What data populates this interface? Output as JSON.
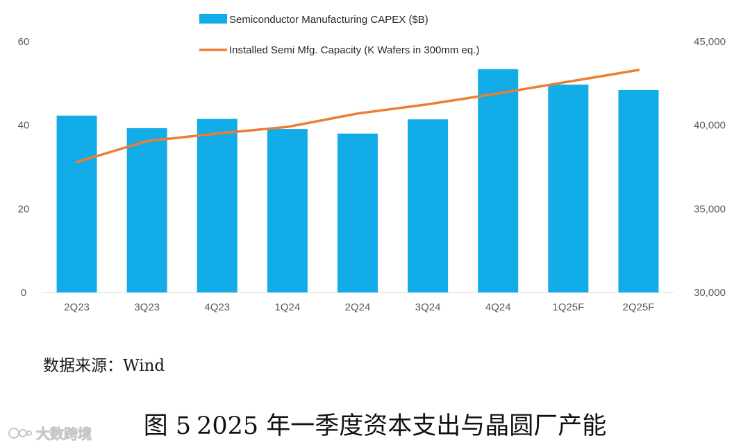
{
  "chart_data": {
    "type": "bar+line",
    "categories": [
      "2Q23",
      "3Q23",
      "4Q23",
      "1Q24",
      "2Q24",
      "3Q24",
      "4Q24",
      "1Q25F",
      "2Q25F"
    ],
    "series": [
      {
        "name": "Semiconductor Manufacturing CAPEX ($B)",
        "kind": "bar",
        "axis": "left",
        "color": "#12ACE8",
        "values": [
          42.3,
          39.3,
          41.5,
          39.1,
          38.0,
          41.4,
          53.4,
          49.7,
          48.4
        ]
      },
      {
        "name": "Installed Semi Mfg. Capacity (K Wafers in 300mm eq.)",
        "kind": "line",
        "axis": "right",
        "color": "#ED7D31",
        "values": [
          37800,
          39050,
          39500,
          39900,
          40700,
          41250,
          41900,
          42600,
          43300
        ]
      }
    ],
    "y_left": {
      "min": 0,
      "max": 60,
      "ticks": [
        "0",
        "20",
        "40",
        "60"
      ],
      "tick_values": [
        0,
        20,
        40,
        60
      ]
    },
    "y_right": {
      "min": 30000,
      "max": 45000,
      "ticks": [
        "30,000",
        "35,000",
        "40,000",
        "45,000"
      ],
      "tick_values": [
        30000,
        35000,
        40000,
        45000
      ]
    },
    "legend": "top-center",
    "grid": false
  },
  "source_text": "数据来源：Wind",
  "caption": {
    "label": "图 5",
    "title": "2025 年一季度资本支出与晶圆厂产能"
  },
  "watermark": {
    "text": "大数跨境"
  }
}
